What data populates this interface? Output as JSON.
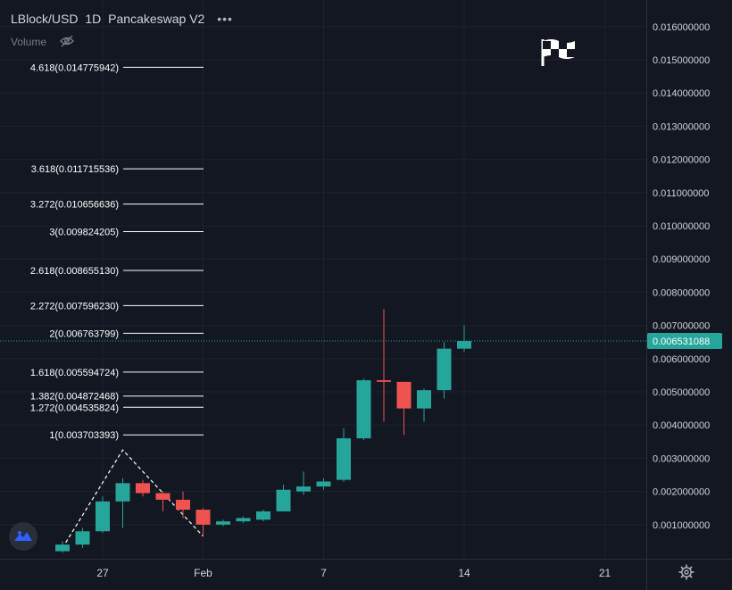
{
  "header": {
    "symbol": "LBlock/USD",
    "interval": "1D",
    "exchange": "Pancakeswap V2",
    "menu_dots": "•••",
    "volume_label": "Volume"
  },
  "icons": {
    "hide": "eye-off-icon",
    "flag": "checkered-flag-icon",
    "logo": "tradingview-logo-icon",
    "settings": "gear-icon"
  },
  "colors": {
    "background": "#131722",
    "up": "#26a69a",
    "down": "#ef5350",
    "grid": "#1e222d",
    "axis_text": "#d1d4dc",
    "price_line": "#26a69a"
  },
  "chart_data": {
    "type": "candlestick",
    "ylim": [
      0,
      0.0163
    ],
    "y_ticks": [
      "0.001000000",
      "0.002000000",
      "0.003000000",
      "0.004000000",
      "0.005000000",
      "0.006000000",
      "0.007000000",
      "0.008000000",
      "0.009000000",
      "0.010000000",
      "0.011000000",
      "0.012000000",
      "0.013000000",
      "0.014000000",
      "0.015000000",
      "0.016000000"
    ],
    "x_ticks": [
      {
        "label": "27",
        "day": 27
      },
      {
        "label": "Feb",
        "day": 32
      },
      {
        "label": "7",
        "day": 38
      },
      {
        "label": "14",
        "day": 45
      },
      {
        "label": "21",
        "day": 52
      }
    ],
    "current_price": "0.006531088",
    "current_price_value": 0.006531088,
    "candles": [
      {
        "day": 25,
        "o": 0.0002,
        "h": 0.0005,
        "l": 0.00015,
        "c": 0.0004
      },
      {
        "day": 26,
        "o": 0.0004,
        "h": 0.0009,
        "l": 0.0003,
        "c": 0.0008
      },
      {
        "day": 27,
        "o": 0.0008,
        "h": 0.00185,
        "l": 0.00075,
        "c": 0.0017
      },
      {
        "day": 28,
        "o": 0.0017,
        "h": 0.0024,
        "l": 0.0009,
        "c": 0.00225
      },
      {
        "day": 29,
        "o": 0.00225,
        "h": 0.00235,
        "l": 0.00185,
        "c": 0.00195
      },
      {
        "day": 30,
        "o": 0.00195,
        "h": 0.002,
        "l": 0.0014,
        "c": 0.00175
      },
      {
        "day": 31,
        "o": 0.00175,
        "h": 0.002,
        "l": 0.0012,
        "c": 0.00145
      },
      {
        "day": 32,
        "o": 0.00145,
        "h": 0.0015,
        "l": 0.00065,
        "c": 0.001
      },
      {
        "day": 33,
        "o": 0.001,
        "h": 0.00115,
        "l": 0.00095,
        "c": 0.0011
      },
      {
        "day": 34,
        "o": 0.0011,
        "h": 0.00125,
        "l": 0.00105,
        "c": 0.0012
      },
      {
        "day": 35,
        "o": 0.00115,
        "h": 0.00145,
        "l": 0.0011,
        "c": 0.0014
      },
      {
        "day": 36,
        "o": 0.0014,
        "h": 0.0022,
        "l": 0.0014,
        "c": 0.00205
      },
      {
        "day": 37,
        "o": 0.002,
        "h": 0.0026,
        "l": 0.0019,
        "c": 0.00215
      },
      {
        "day": 38,
        "o": 0.00215,
        "h": 0.0024,
        "l": 0.00205,
        "c": 0.0023
      },
      {
        "day": 39,
        "o": 0.00235,
        "h": 0.0039,
        "l": 0.0023,
        "c": 0.0036
      },
      {
        "day": 40,
        "o": 0.0036,
        "h": 0.0054,
        "l": 0.00355,
        "c": 0.00535
      },
      {
        "day": 41,
        "o": 0.00535,
        "h": 0.0075,
        "l": 0.0041,
        "c": 0.0053
      },
      {
        "day": 42,
        "o": 0.0053,
        "h": 0.0053,
        "l": 0.0037,
        "c": 0.0045
      },
      {
        "day": 43,
        "o": 0.0045,
        "h": 0.0051,
        "l": 0.0041,
        "c": 0.00505
      },
      {
        "day": 44,
        "o": 0.00505,
        "h": 0.0065,
        "l": 0.0048,
        "c": 0.0063
      },
      {
        "day": 45,
        "o": 0.0063,
        "h": 0.007,
        "l": 0.0062,
        "c": 0.00653
      }
    ],
    "fib_levels": [
      {
        "label": "4.618(0.014775942)",
        "value": 0.014775942
      },
      {
        "label": "3.618(0.011715536)",
        "value": 0.011715536
      },
      {
        "label": "3.272(0.010656636)",
        "value": 0.010656636
      },
      {
        "label": "3(0.009824205)",
        "value": 0.009824205
      },
      {
        "label": "2.618(0.008655130)",
        "value": 0.00865513
      },
      {
        "label": "2.272(0.007596230)",
        "value": 0.00759623
      },
      {
        "label": "2(0.006763799)",
        "value": 0.006763799
      },
      {
        "label": "1.618(0.005594724)",
        "value": 0.005594724
      },
      {
        "label": "1.382(0.004872468)",
        "value": 0.004872468
      },
      {
        "label": "1.272(0.004535824)",
        "value": 0.004535824
      },
      {
        "label": "1(0.003703393)",
        "value": 0.003703393
      }
    ],
    "fib_points": [
      {
        "day": 25,
        "value": 0.0003
      },
      {
        "day": 28,
        "value": 0.00325
      },
      {
        "day": 32,
        "value": 0.00065
      }
    ]
  }
}
